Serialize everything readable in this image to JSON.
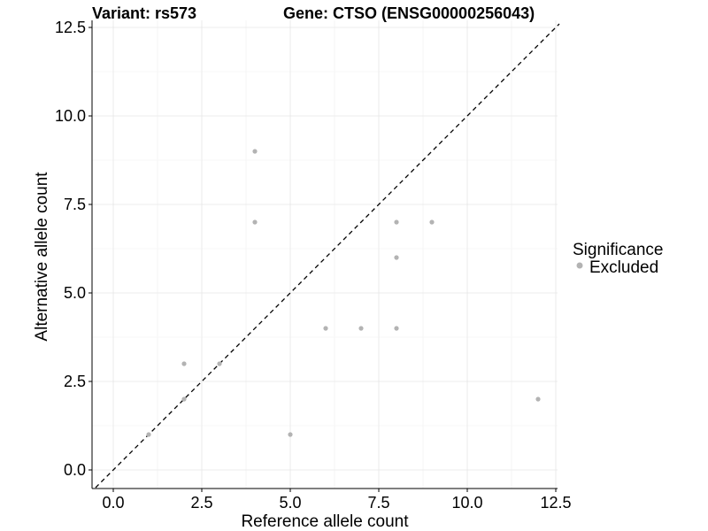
{
  "chart_data": {
    "type": "scatter",
    "title_left": "Variant: rs573",
    "title_right": "Gene: CTSO (ENSG00000256043)",
    "xlabel": "Reference allele count",
    "ylabel": "Alternative allele count",
    "xlim": [
      -0.5,
      12.6
    ],
    "ylim": [
      -0.55,
      12.6
    ],
    "xticks": [
      0,
      2.5,
      5,
      7.5,
      10,
      12.5
    ],
    "xtick_labels": [
      "0.0",
      "2.5",
      "5.0",
      "7.5",
      "10.0",
      "12.5"
    ],
    "yticks": [
      0,
      2.5,
      5,
      7.5,
      10,
      12.5
    ],
    "ytick_labels": [
      "0.0",
      "2.5",
      "5.0",
      "7.5",
      "10.0",
      "12.5"
    ],
    "grid": true,
    "reference_line": "y = x (dashed)",
    "legend": {
      "title": "Significance",
      "position": "right",
      "entries": [
        "Excluded"
      ]
    },
    "point_color": "#b3b3b3",
    "series": [
      {
        "name": "Excluded",
        "points": [
          {
            "x": 1,
            "y": 1
          },
          {
            "x": 2,
            "y": 2
          },
          {
            "x": 2,
            "y": 3
          },
          {
            "x": 3,
            "y": 3
          },
          {
            "x": 4,
            "y": 9
          },
          {
            "x": 4,
            "y": 7
          },
          {
            "x": 5,
            "y": 1
          },
          {
            "x": 6,
            "y": 4
          },
          {
            "x": 7,
            "y": 4
          },
          {
            "x": 8,
            "y": 4
          },
          {
            "x": 8,
            "y": 7
          },
          {
            "x": 8,
            "y": 6
          },
          {
            "x": 9,
            "y": 7
          },
          {
            "x": 12,
            "y": 2
          }
        ]
      }
    ]
  }
}
